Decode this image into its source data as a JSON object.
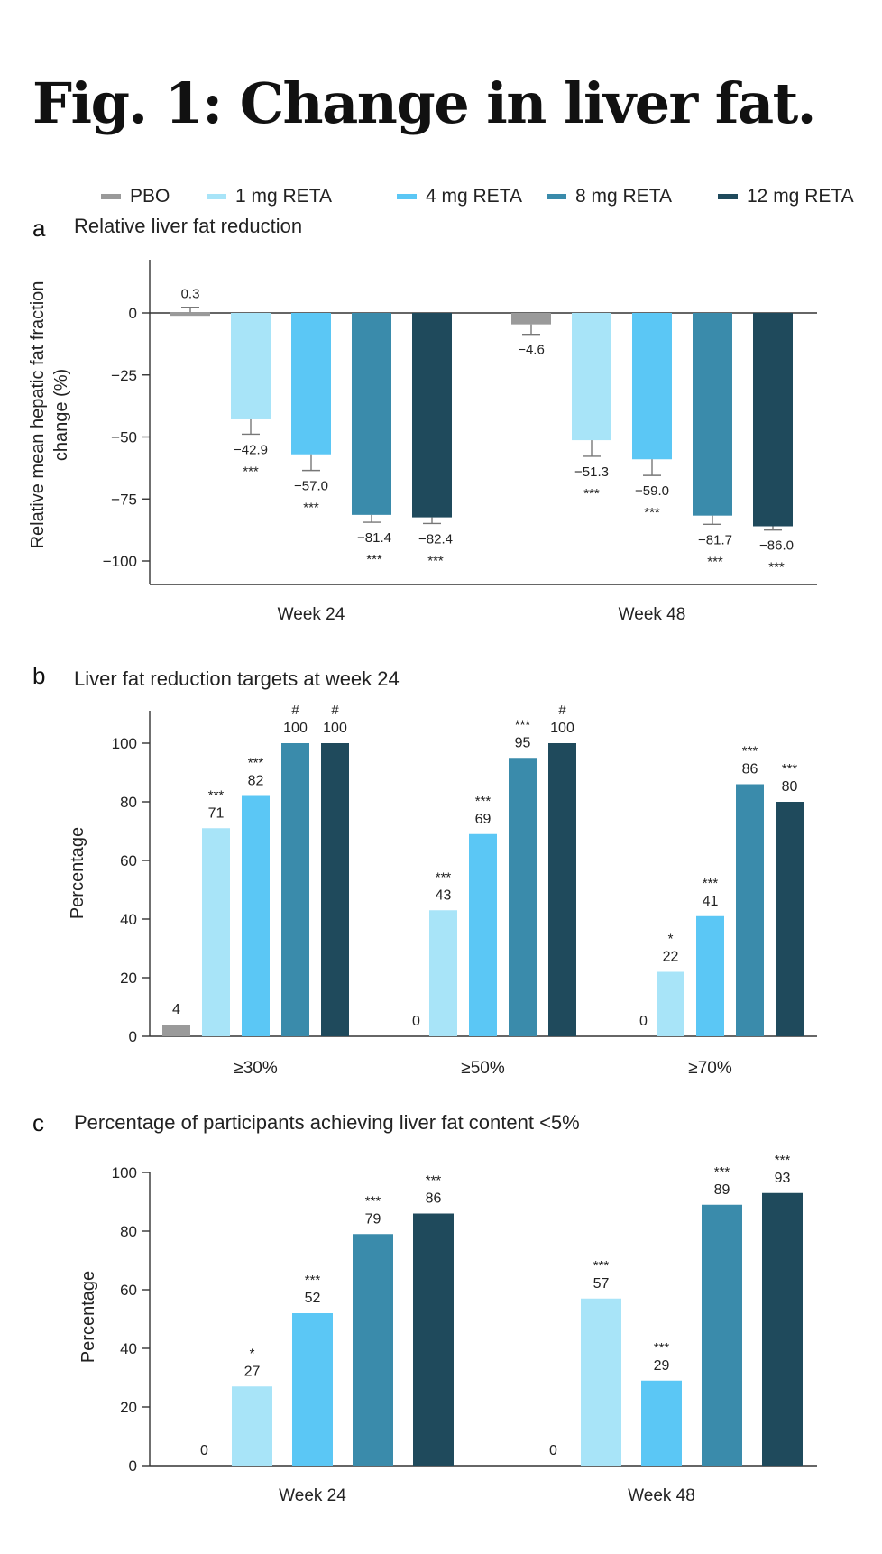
{
  "figure": {
    "title": "Fig. 1: Change in liver fat.",
    "legend": [
      {
        "name": "PBO",
        "color": "#9a9a9a"
      },
      {
        "name": "1 mg RETA",
        "color": "#a8e4f8"
      },
      {
        "name": "4 mg RETA",
        "color": "#5bc7f5"
      },
      {
        "name": "8 mg RETA",
        "color": "#3a8bab"
      },
      {
        "name": "12 mg RETA",
        "color": "#1f4a5c"
      }
    ]
  },
  "chart_data": [
    {
      "panel": "a",
      "type": "bar",
      "title": "Relative liver fat reduction",
      "xlabel": "",
      "ylabel": "Relative mean hepatic fat fraction change (%)",
      "ylabel_lines": [
        "Relative mean hepatic fat fraction",
        "change (%)"
      ],
      "ylim": [
        -110,
        22
      ],
      "yticks": [
        0,
        -25,
        -50,
        -75,
        -100
      ],
      "ytick_labels": [
        "0",
        "−25",
        "−50",
        "−75",
        "−100"
      ],
      "grid": false,
      "legend_position": "top",
      "categories": [
        "Week 24",
        "Week 48"
      ],
      "series": [
        {
          "name": "PBO",
          "color": "#9a9a9a",
          "values": [
            0.3,
            -4.6
          ],
          "labels": [
            "0.3",
            "−4.6"
          ],
          "error": [
            2.0,
            4.0
          ],
          "sig": [
            "",
            ""
          ]
        },
        {
          "name": "1 mg RETA",
          "color": "#a8e4f8",
          "values": [
            -42.9,
            -51.3
          ],
          "labels": [
            "−42.9",
            "−51.3"
          ],
          "error": [
            6.0,
            6.5
          ],
          "sig": [
            "***",
            "***"
          ]
        },
        {
          "name": "4 mg RETA",
          "color": "#5bc7f5",
          "values": [
            -57.0,
            -59.0
          ],
          "labels": [
            "−57.0",
            "−59.0"
          ],
          "error": [
            6.5,
            6.5
          ],
          "sig": [
            "***",
            "***"
          ]
        },
        {
          "name": "8 mg RETA",
          "color": "#3a8bab",
          "values": [
            -81.4,
            -81.7
          ],
          "labels": [
            "−81.4",
            "−81.7"
          ],
          "error": [
            3.0,
            3.5
          ],
          "sig": [
            "***",
            "***"
          ]
        },
        {
          "name": "12 mg RETA",
          "color": "#1f4a5c",
          "values": [
            -82.4,
            -86.0
          ],
          "labels": [
            "−82.4",
            "−86.0"
          ],
          "error": [
            2.5,
            1.5
          ],
          "sig": [
            "***",
            "***"
          ]
        }
      ]
    },
    {
      "panel": "b",
      "type": "bar",
      "title": "Liver fat reduction targets at week 24",
      "xlabel": "",
      "ylabel": "Percentage",
      "ylabel_lines": [
        "Percentage"
      ],
      "ylim": [
        0,
        110
      ],
      "yticks": [
        0,
        20,
        40,
        60,
        80,
        100
      ],
      "ytick_labels": [
        "0",
        "20",
        "40",
        "60",
        "80",
        "100"
      ],
      "grid": false,
      "categories": [
        "≥30%",
        "≥50%",
        "≥70%"
      ],
      "series": [
        {
          "name": "PBO",
          "color": "#9a9a9a",
          "values": [
            4,
            0,
            0
          ],
          "labels": [
            "4",
            "0",
            "0"
          ],
          "sig": [
            "",
            "",
            ""
          ]
        },
        {
          "name": "1 mg RETA",
          "color": "#a8e4f8",
          "values": [
            71,
            43,
            22
          ],
          "labels": [
            "71",
            "43",
            "22"
          ],
          "sig": [
            "***",
            "***",
            "*"
          ]
        },
        {
          "name": "4 mg RETA",
          "color": "#5bc7f5",
          "values": [
            82,
            69,
            41
          ],
          "labels": [
            "82",
            "69",
            "41"
          ],
          "sig": [
            "***",
            "***",
            "***"
          ]
        },
        {
          "name": "8 mg RETA",
          "color": "#3a8bab",
          "values": [
            100,
            95,
            86
          ],
          "labels": [
            "100",
            "95",
            "86"
          ],
          "sig": [
            "#",
            "***",
            "***"
          ]
        },
        {
          "name": "12 mg RETA",
          "color": "#1f4a5c",
          "values": [
            100,
            100,
            80
          ],
          "labels": [
            "100",
            "100",
            "80"
          ],
          "sig": [
            "#",
            "#",
            "***"
          ]
        }
      ]
    },
    {
      "panel": "c",
      "type": "bar",
      "title": "Percentage of participants achieving liver fat content <5%",
      "xlabel": "",
      "ylabel": "Percentage",
      "ylabel_lines": [
        "Percentage"
      ],
      "ylim": [
        0,
        100
      ],
      "yticks": [
        0,
        20,
        40,
        60,
        80,
        100
      ],
      "ytick_labels": [
        "0",
        "20",
        "40",
        "60",
        "80",
        "100"
      ],
      "grid": false,
      "categories": [
        "Week 24",
        "Week 48"
      ],
      "series": [
        {
          "name": "PBO",
          "color": "#9a9a9a",
          "values": [
            0,
            0
          ],
          "labels": [
            "0",
            "0"
          ],
          "sig": [
            "",
            ""
          ]
        },
        {
          "name": "1 mg RETA",
          "color": "#a8e4f8",
          "values": [
            27,
            57
          ],
          "labels": [
            "27",
            "57"
          ],
          "sig": [
            "*",
            "***"
          ]
        },
        {
          "name": "4 mg RETA",
          "color": "#5bc7f5",
          "values": [
            52,
            29
          ],
          "labels": [
            "52",
            "29"
          ],
          "sig": [
            "***",
            "***"
          ]
        },
        {
          "name": "8 mg RETA",
          "color": "#3a8bab",
          "values": [
            79,
            89
          ],
          "labels": [
            "79",
            "89"
          ],
          "sig": [
            "***",
            "***"
          ]
        },
        {
          "name": "12 mg RETA",
          "color": "#1f4a5c",
          "values": [
            86,
            93
          ],
          "labels": [
            "86",
            "93"
          ],
          "sig": [
            "***",
            "***"
          ]
        }
      ]
    }
  ]
}
